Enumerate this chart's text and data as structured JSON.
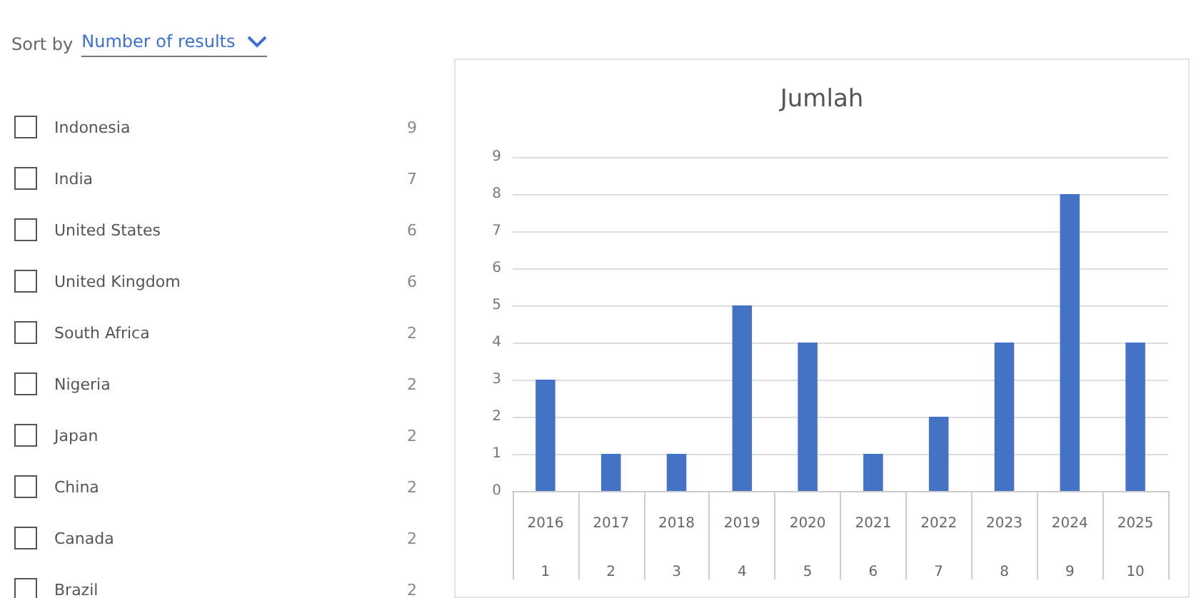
{
  "chart_data": [
    {
      "type": "other",
      "annotations": [
        "Sort by",
        "Number of results"
      ],
      "categories": [
        "Indonesia",
        "India",
        "United States",
        "United Kingdom",
        "South Africa",
        "Nigeria",
        "Japan",
        "China",
        "Canada",
        "Brazil"
      ],
      "values": [
        9,
        7,
        6,
        6,
        2,
        2,
        2,
        2,
        2,
        2
      ],
      "data_labels": true
    },
    {
      "type": "bar",
      "title": "Jumlah",
      "categories": [
        "2016",
        "2017",
        "2018",
        "2019",
        "2020",
        "2021",
        "2022",
        "2023",
        "2024",
        "2025"
      ],
      "values": [
        3,
        1,
        1,
        5,
        4,
        1,
        2,
        4,
        8,
        4
      ],
      "color": "#4472c4",
      "ylim": [
        0,
        9
      ],
      "yticks": [
        0,
        1,
        2,
        3,
        4,
        5,
        6,
        7,
        8,
        9
      ],
      "grid": "y",
      "annotations": [
        "1",
        "2",
        "3",
        "4",
        "5",
        "6",
        "7",
        "8",
        "9",
        "10"
      ]
    }
  ]
}
